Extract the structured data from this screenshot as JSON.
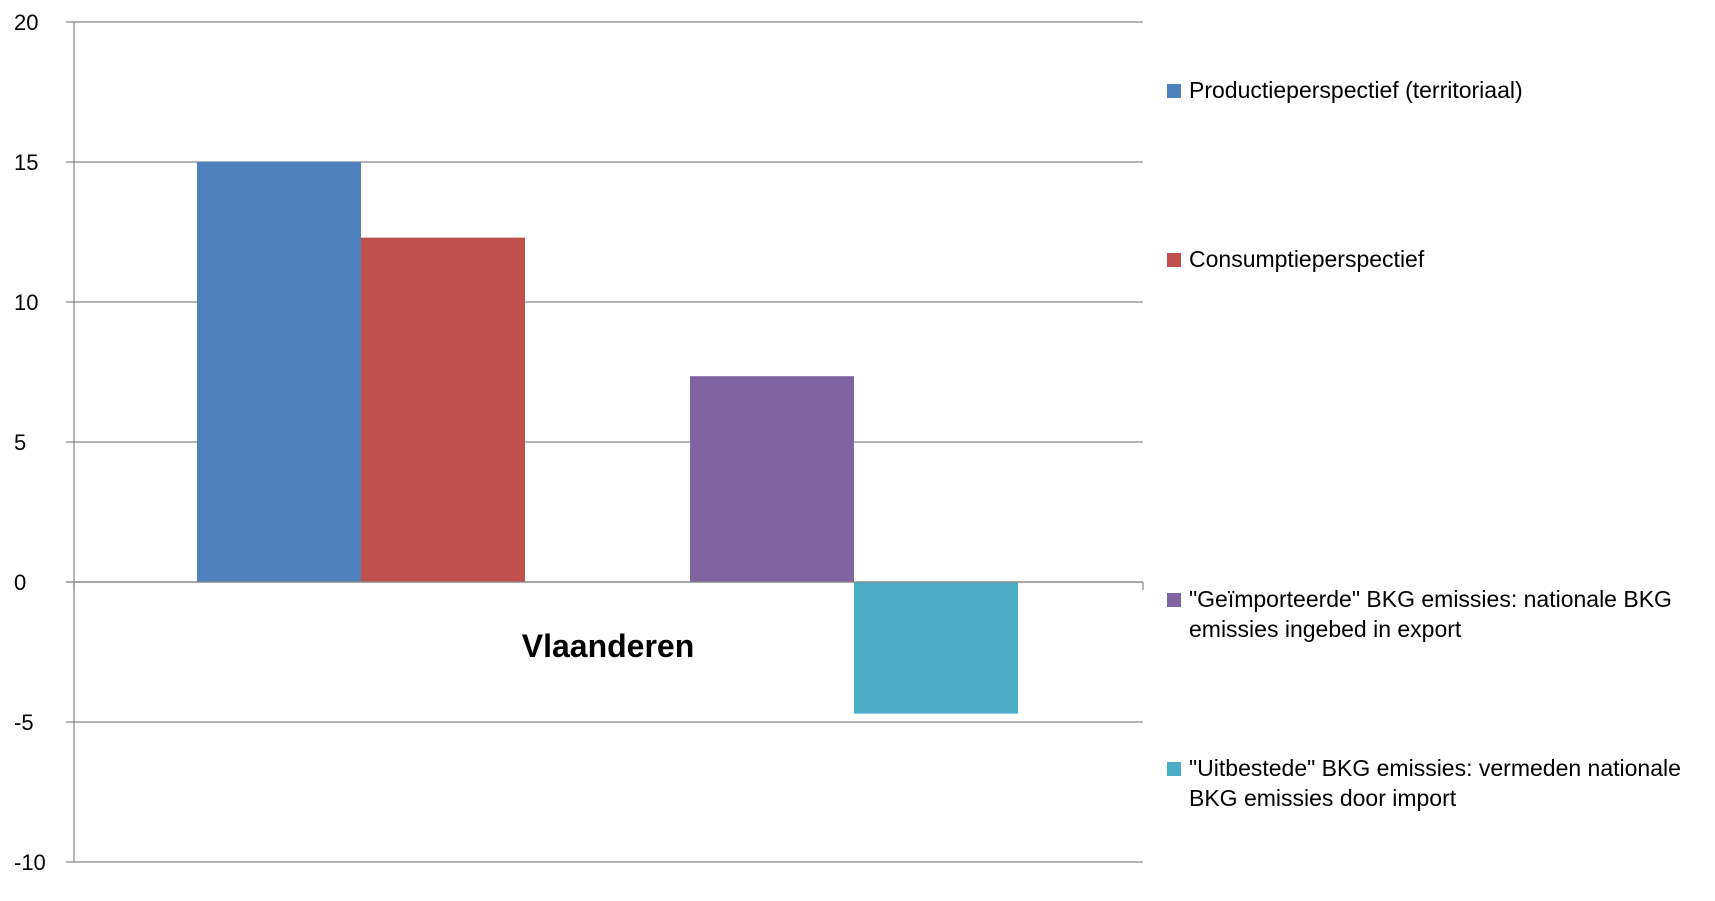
{
  "chart_data": {
    "type": "bar",
    "categories": [
      "Vlaanderen"
    ],
    "series": [
      {
        "name": "Productieperspectief (territoriaal)",
        "values": [
          15.0
        ],
        "color": "#4F81BD"
      },
      {
        "name": "Consumptieperspectief",
        "values": [
          12.3
        ],
        "color": "#C0504D"
      },
      {
        "name": "\"Geïmporteerde\" BKG emissies: nationale BKG emissies ingebed in export",
        "values": [
          7.35
        ],
        "color": "#8064A2"
      },
      {
        "name": "\"Uitbestede\" BKG emissies: vermeden nationale BKG emissies door import",
        "values": [
          -4.7
        ],
        "color": "#4BACC6"
      }
    ],
    "title": "",
    "xlabel": "",
    "ylabel": "",
    "ylim": [
      -10,
      20
    ],
    "yticks": [
      "20",
      "15",
      "10",
      "5",
      "0",
      "-5",
      "-10"
    ],
    "grid": true,
    "legend_position": "right"
  }
}
